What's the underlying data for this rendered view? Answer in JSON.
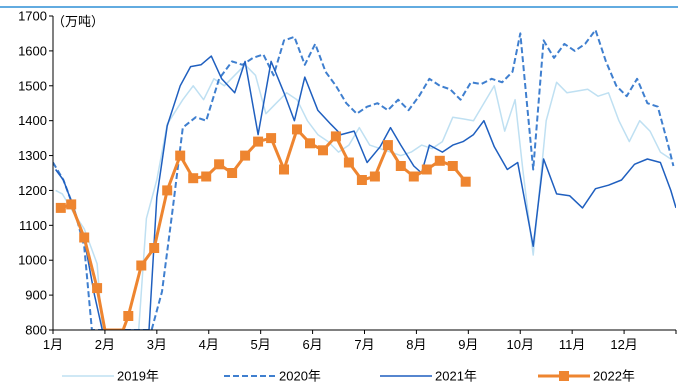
{
  "chart_data": {
    "type": "line",
    "unit": "（万吨）",
    "ylim": [
      800,
      1700
    ],
    "y_ticks": [
      800,
      900,
      1000,
      1100,
      1200,
      1300,
      1400,
      1500,
      1600,
      1700
    ],
    "x_range": [
      1,
      13
    ],
    "x_ticks": [
      {
        "x": 1,
        "label": "1月"
      },
      {
        "x": 2,
        "label": "2月"
      },
      {
        "x": 3,
        "label": "3月"
      },
      {
        "x": 4,
        "label": "4月"
      },
      {
        "x": 5,
        "label": "5月"
      },
      {
        "x": 6,
        "label": "6月"
      },
      {
        "x": 7,
        "label": "7月"
      },
      {
        "x": 8,
        "label": "8月"
      },
      {
        "x": 9,
        "label": "9月"
      },
      {
        "x": 10,
        "label": "10月"
      },
      {
        "x": 11,
        "label": "11月"
      },
      {
        "x": 12,
        "label": "12月"
      }
    ],
    "grid": false,
    "legend_position": "bottom",
    "colors": {
      "top_rule": "#2F8FD6",
      "axis": "#000000"
    },
    "series": [
      {
        "name": "2019年",
        "color": "#BFE0F2",
        "style": "solid",
        "points": [
          [
            1.05,
            1200
          ],
          [
            1.18,
            1190
          ],
          [
            1.38,
            1140
          ],
          [
            1.6,
            1090
          ],
          [
            1.85,
            990
          ],
          [
            1.95,
            800
          ],
          [
            2.65,
            800
          ],
          [
            2.8,
            1120
          ],
          [
            3.0,
            1230
          ],
          [
            3.2,
            1390
          ],
          [
            3.5,
            1460
          ],
          [
            3.7,
            1500
          ],
          [
            3.9,
            1460
          ],
          [
            4.1,
            1520
          ],
          [
            4.3,
            1500
          ],
          [
            4.5,
            1530
          ],
          [
            4.7,
            1560
          ],
          [
            4.9,
            1530
          ],
          [
            5.1,
            1420
          ],
          [
            5.3,
            1450
          ],
          [
            5.5,
            1480
          ],
          [
            5.7,
            1460
          ],
          [
            5.9,
            1400
          ],
          [
            6.1,
            1360
          ],
          [
            6.3,
            1340
          ],
          [
            6.5,
            1310
          ],
          [
            6.7,
            1330
          ],
          [
            6.9,
            1380
          ],
          [
            7.1,
            1330
          ],
          [
            7.3,
            1320
          ],
          [
            7.5,
            1310
          ],
          [
            7.7,
            1300
          ],
          [
            7.9,
            1310
          ],
          [
            8.1,
            1330
          ],
          [
            8.3,
            1320
          ],
          [
            8.5,
            1340
          ],
          [
            8.7,
            1410
          ],
          [
            8.9,
            1405
          ],
          [
            9.1,
            1400
          ],
          [
            9.3,
            1450
          ],
          [
            9.5,
            1500
          ],
          [
            9.7,
            1370
          ],
          [
            9.9,
            1460
          ],
          [
            10.05,
            1260
          ],
          [
            10.25,
            1015
          ],
          [
            10.5,
            1400
          ],
          [
            10.7,
            1510
          ],
          [
            10.9,
            1480
          ],
          [
            11.1,
            1485
          ],
          [
            11.3,
            1490
          ],
          [
            11.5,
            1470
          ],
          [
            11.7,
            1480
          ],
          [
            11.9,
            1400
          ],
          [
            12.1,
            1340
          ],
          [
            12.3,
            1400
          ],
          [
            12.5,
            1370
          ],
          [
            12.7,
            1310
          ],
          [
            12.9,
            1290
          ]
        ]
      },
      {
        "name": "2020年",
        "color": "#3F7FCF",
        "style": "dashed",
        "points": [
          [
            1.0,
            1280
          ],
          [
            1.2,
            1230
          ],
          [
            1.4,
            1150
          ],
          [
            1.6,
            1040
          ],
          [
            1.75,
            800
          ],
          [
            2.9,
            800
          ],
          [
            3.1,
            910
          ],
          [
            3.3,
            1140
          ],
          [
            3.5,
            1380
          ],
          [
            3.75,
            1410
          ],
          [
            3.95,
            1400
          ],
          [
            4.2,
            1520
          ],
          [
            4.45,
            1570
          ],
          [
            4.65,
            1560
          ],
          [
            4.85,
            1580
          ],
          [
            5.05,
            1590
          ],
          [
            5.25,
            1530
          ],
          [
            5.45,
            1630
          ],
          [
            5.65,
            1640
          ],
          [
            5.85,
            1560
          ],
          [
            6.05,
            1620
          ],
          [
            6.25,
            1540
          ],
          [
            6.45,
            1500
          ],
          [
            6.65,
            1450
          ],
          [
            6.85,
            1420
          ],
          [
            7.05,
            1440
          ],
          [
            7.25,
            1450
          ],
          [
            7.45,
            1430
          ],
          [
            7.65,
            1460
          ],
          [
            7.85,
            1430
          ],
          [
            8.05,
            1470
          ],
          [
            8.25,
            1520
          ],
          [
            8.45,
            1500
          ],
          [
            8.65,
            1490
          ],
          [
            8.85,
            1460
          ],
          [
            9.05,
            1510
          ],
          [
            9.25,
            1505
          ],
          [
            9.45,
            1520
          ],
          [
            9.65,
            1510
          ],
          [
            9.85,
            1540
          ],
          [
            10.0,
            1650
          ],
          [
            10.25,
            1260
          ],
          [
            10.45,
            1630
          ],
          [
            10.65,
            1580
          ],
          [
            10.85,
            1620
          ],
          [
            11.05,
            1600
          ],
          [
            11.25,
            1620
          ],
          [
            11.45,
            1660
          ],
          [
            11.65,
            1570
          ],
          [
            11.85,
            1500
          ],
          [
            12.05,
            1470
          ],
          [
            12.25,
            1520
          ],
          [
            12.45,
            1450
          ],
          [
            12.65,
            1440
          ],
          [
            12.85,
            1330
          ],
          [
            12.95,
            1270
          ]
        ]
      },
      {
        "name": "2021年",
        "color": "#1F5FBF",
        "style": "solid",
        "points": [
          [
            1.05,
            1260
          ],
          [
            1.2,
            1230
          ],
          [
            1.4,
            1150
          ],
          [
            1.6,
            1060
          ],
          [
            1.8,
            900
          ],
          [
            1.95,
            800
          ],
          [
            2.85,
            800
          ],
          [
            3.0,
            1180
          ],
          [
            3.2,
            1385
          ],
          [
            3.45,
            1500
          ],
          [
            3.65,
            1555
          ],
          [
            3.85,
            1560
          ],
          [
            4.05,
            1585
          ],
          [
            4.25,
            1520
          ],
          [
            4.5,
            1480
          ],
          [
            4.7,
            1570
          ],
          [
            4.95,
            1360
          ],
          [
            5.2,
            1570
          ],
          [
            5.45,
            1480
          ],
          [
            5.65,
            1400
          ],
          [
            5.85,
            1525
          ],
          [
            6.1,
            1430
          ],
          [
            6.35,
            1390
          ],
          [
            6.55,
            1360
          ],
          [
            6.8,
            1370
          ],
          [
            7.05,
            1280
          ],
          [
            7.3,
            1325
          ],
          [
            7.5,
            1380
          ],
          [
            7.7,
            1330
          ],
          [
            7.95,
            1270
          ],
          [
            8.1,
            1250
          ],
          [
            8.25,
            1330
          ],
          [
            8.5,
            1310
          ],
          [
            8.7,
            1330
          ],
          [
            8.9,
            1340
          ],
          [
            9.1,
            1360
          ],
          [
            9.3,
            1400
          ],
          [
            9.5,
            1325
          ],
          [
            9.75,
            1260
          ],
          [
            9.95,
            1280
          ],
          [
            10.25,
            1040
          ],
          [
            10.45,
            1290
          ],
          [
            10.7,
            1190
          ],
          [
            10.95,
            1185
          ],
          [
            11.2,
            1150
          ],
          [
            11.45,
            1205
          ],
          [
            11.7,
            1215
          ],
          [
            11.95,
            1230
          ],
          [
            12.2,
            1275
          ],
          [
            12.45,
            1290
          ],
          [
            12.7,
            1280
          ],
          [
            12.9,
            1200
          ],
          [
            13.0,
            1150
          ]
        ]
      },
      {
        "name": "2022年",
        "color": "#EE8530",
        "style": "solid-marker",
        "points": [
          [
            1.15,
            1150
          ],
          [
            1.35,
            1160
          ],
          [
            1.6,
            1065
          ],
          [
            1.85,
            920
          ],
          [
            2.0,
            800
          ],
          [
            2.35,
            800
          ],
          [
            2.45,
            840
          ],
          [
            2.7,
            985
          ],
          [
            2.95,
            1035
          ],
          [
            3.2,
            1200
          ],
          [
            3.45,
            1300
          ],
          [
            3.7,
            1235
          ],
          [
            3.95,
            1240
          ],
          [
            4.2,
            1275
          ],
          [
            4.45,
            1250
          ],
          [
            4.7,
            1300
          ],
          [
            4.95,
            1340
          ],
          [
            5.2,
            1350
          ],
          [
            5.45,
            1260
          ],
          [
            5.7,
            1375
          ],
          [
            5.95,
            1335
          ],
          [
            6.2,
            1315
          ],
          [
            6.45,
            1355
          ],
          [
            6.7,
            1280
          ],
          [
            6.95,
            1230
          ],
          [
            7.2,
            1240
          ],
          [
            7.45,
            1330
          ],
          [
            7.7,
            1270
          ],
          [
            7.95,
            1240
          ],
          [
            8.2,
            1260
          ],
          [
            8.45,
            1285
          ],
          [
            8.7,
            1270
          ],
          [
            8.95,
            1225
          ]
        ]
      }
    ]
  }
}
